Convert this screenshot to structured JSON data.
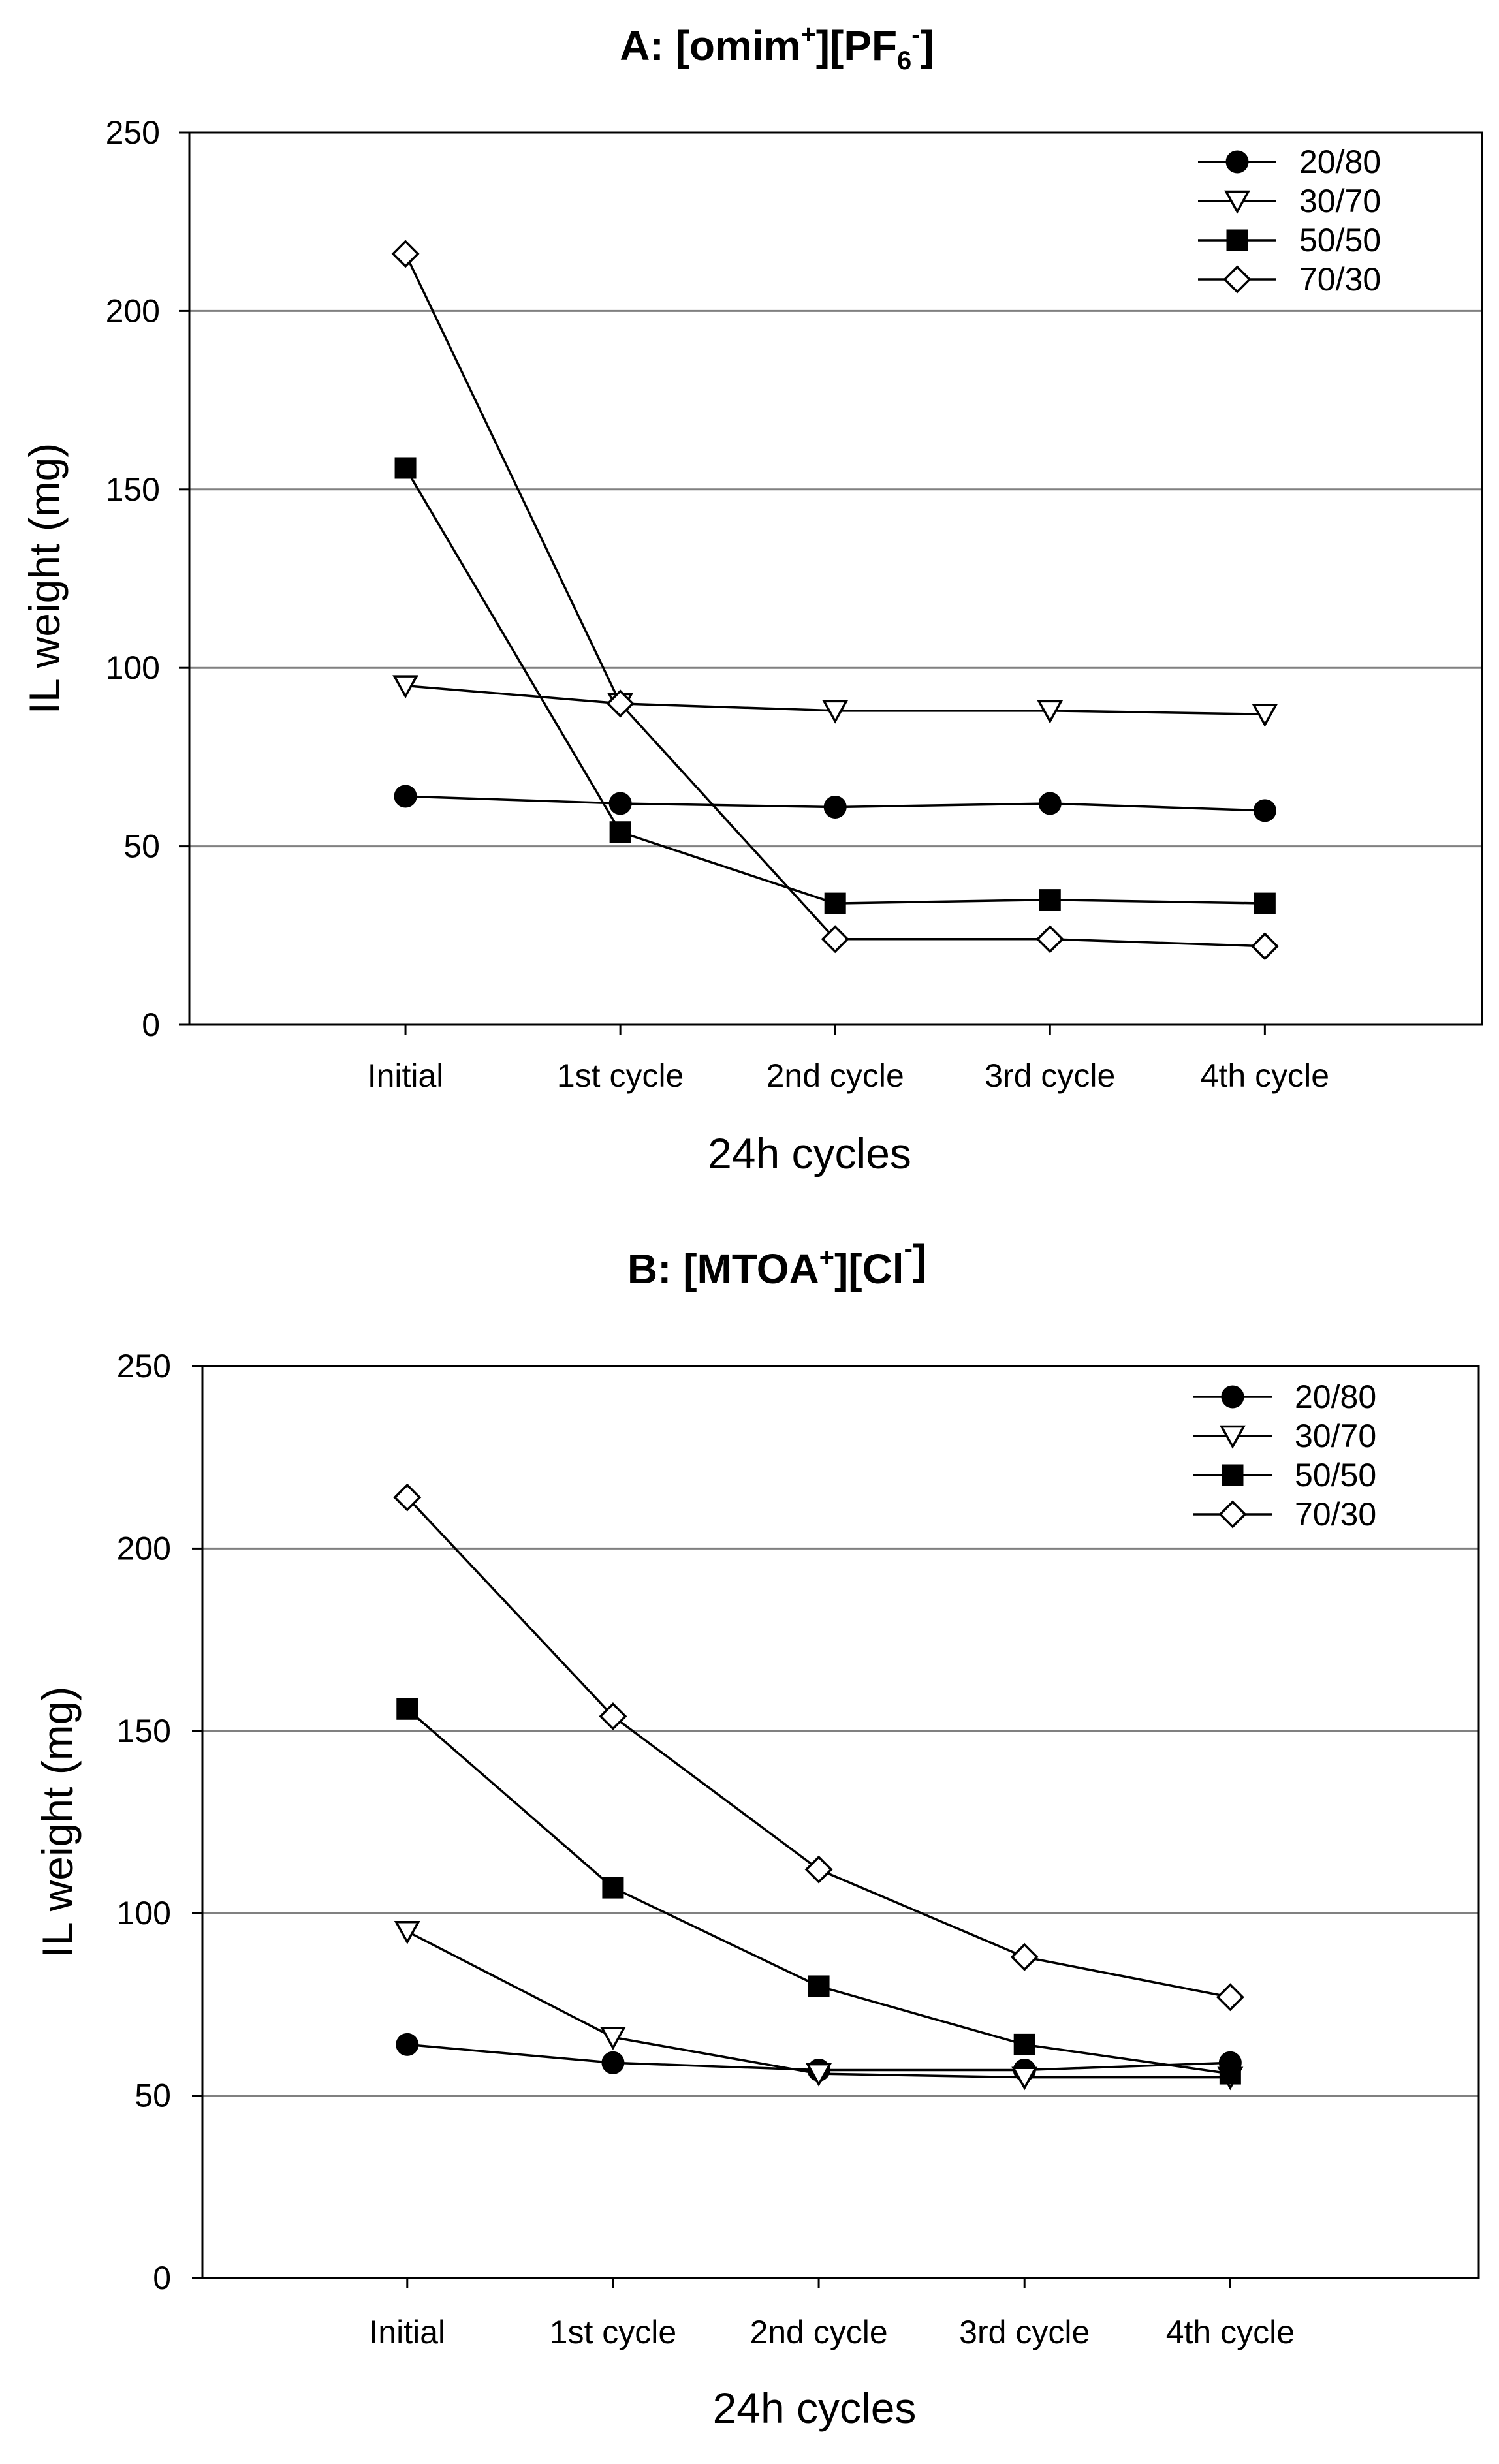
{
  "chart_data": [
    {
      "type": "line",
      "title": {
        "main": "A: [omim",
        "sup1": "+",
        "mid": "][PF",
        "sub": "6",
        "sup2": "-",
        "end": "]"
      },
      "xlabel": "24h cycles",
      "ylabel": "IL weight (mg)",
      "ylim": [
        0,
        250
      ],
      "yticks": [
        0,
        50,
        100,
        150,
        200,
        250
      ],
      "categories": [
        "Initial",
        "1st cycle",
        "2nd cycle",
        "3rd cycle",
        "4th cycle"
      ],
      "grid": true,
      "legend_position": "top-right",
      "series": [
        {
          "name": "20/80",
          "marker": "circle",
          "values": [
            64,
            62,
            61,
            62,
            60
          ]
        },
        {
          "name": "30/70",
          "marker": "triangle-down",
          "values": [
            95,
            90,
            88,
            88,
            87
          ]
        },
        {
          "name": "50/50",
          "marker": "square",
          "values": [
            156,
            54,
            34,
            35,
            34
          ]
        },
        {
          "name": "70/30",
          "marker": "diamond",
          "values": [
            216,
            90,
            24,
            24,
            22
          ]
        }
      ]
    },
    {
      "type": "line",
      "title": {
        "main": "B: [MTOA",
        "sup1": "+",
        "mid": "][Cl",
        "sub": "",
        "sup2": "-",
        "end": "]"
      },
      "xlabel": "24h cycles",
      "ylabel": "IL weight (mg)",
      "ylim": [
        0,
        250
      ],
      "yticks": [
        0,
        50,
        100,
        150,
        200,
        250
      ],
      "categories": [
        "Initial",
        "1st cycle",
        "2nd cycle",
        "3rd cycle",
        "4th cycle"
      ],
      "grid": true,
      "legend_position": "top-right",
      "series": [
        {
          "name": "20/80",
          "marker": "circle",
          "values": [
            64,
            59,
            57,
            57,
            59
          ]
        },
        {
          "name": "30/70",
          "marker": "triangle-down",
          "values": [
            95,
            66,
            56,
            55,
            55
          ]
        },
        {
          "name": "50/50",
          "marker": "square",
          "values": [
            156,
            107,
            80,
            64,
            56
          ]
        },
        {
          "name": "70/30",
          "marker": "diamond",
          "values": [
            214,
            154,
            112,
            88,
            77
          ]
        }
      ]
    }
  ]
}
